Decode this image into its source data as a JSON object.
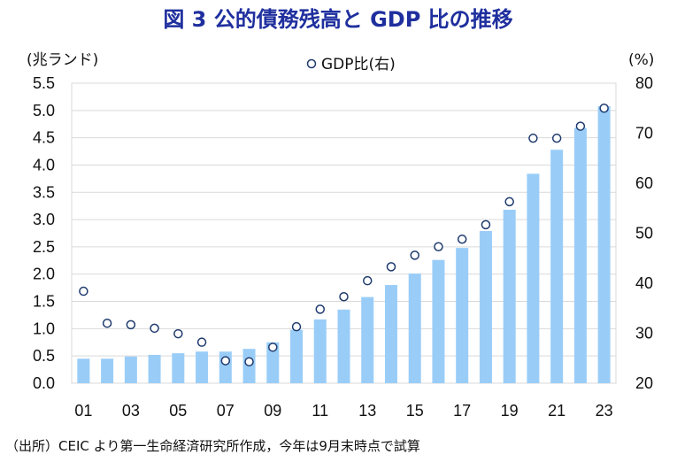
{
  "chart_data": {
    "type": "bar",
    "title": "図 3  公的債務残高と GDP 比の推移",
    "left_unit": "(兆ランド)",
    "right_unit": "(%)",
    "legend": {
      "label": "GDP比(右)",
      "placement": "top-center"
    },
    "source_note": "（出所）CEIC より第一生命経済研究所作成，今年は9月末時点で試算",
    "categories": [
      "01",
      "02",
      "03",
      "04",
      "05",
      "06",
      "07",
      "08",
      "09",
      "10",
      "11",
      "12",
      "13",
      "14",
      "15",
      "16",
      "17",
      "18",
      "19",
      "20",
      "21",
      "22",
      "23"
    ],
    "x_tick_labels": [
      "01",
      "03",
      "05",
      "07",
      "09",
      "11",
      "13",
      "15",
      "17",
      "19",
      "21",
      "23"
    ],
    "y_left": {
      "min": 0,
      "max": 5.5,
      "step": 0.5,
      "ticks": [
        "0.0",
        "0.5",
        "1.0",
        "1.5",
        "2.0",
        "2.5",
        "3.0",
        "3.5",
        "4.0",
        "4.5",
        "5.0",
        "5.5"
      ]
    },
    "y_right": {
      "min": 20,
      "max": 80,
      "step": 10,
      "ticks": [
        "20",
        "30",
        "40",
        "50",
        "60",
        "70",
        "80"
      ]
    },
    "grid": true,
    "series": [
      {
        "kind": "bar",
        "axis": "left",
        "color": "#99cdf8",
        "values": [
          0.45,
          0.45,
          0.49,
          0.52,
          0.55,
          0.58,
          0.58,
          0.63,
          0.75,
          0.98,
          1.17,
          1.35,
          1.58,
          1.8,
          2.01,
          2.26,
          2.48,
          2.79,
          3.18,
          3.84,
          4.28,
          4.68,
          5.08
        ]
      },
      {
        "kind": "scatter",
        "name": "GDP比(右)",
        "axis": "right",
        "color": "#1f3a6e",
        "values": [
          38.4,
          32.0,
          31.7,
          31.0,
          29.9,
          28.2,
          24.5,
          24.3,
          27.2,
          31.3,
          34.8,
          37.3,
          40.5,
          43.3,
          45.6,
          47.3,
          48.8,
          51.7,
          56.3,
          69.0,
          69.0,
          71.4,
          75.0
        ]
      }
    ]
  }
}
